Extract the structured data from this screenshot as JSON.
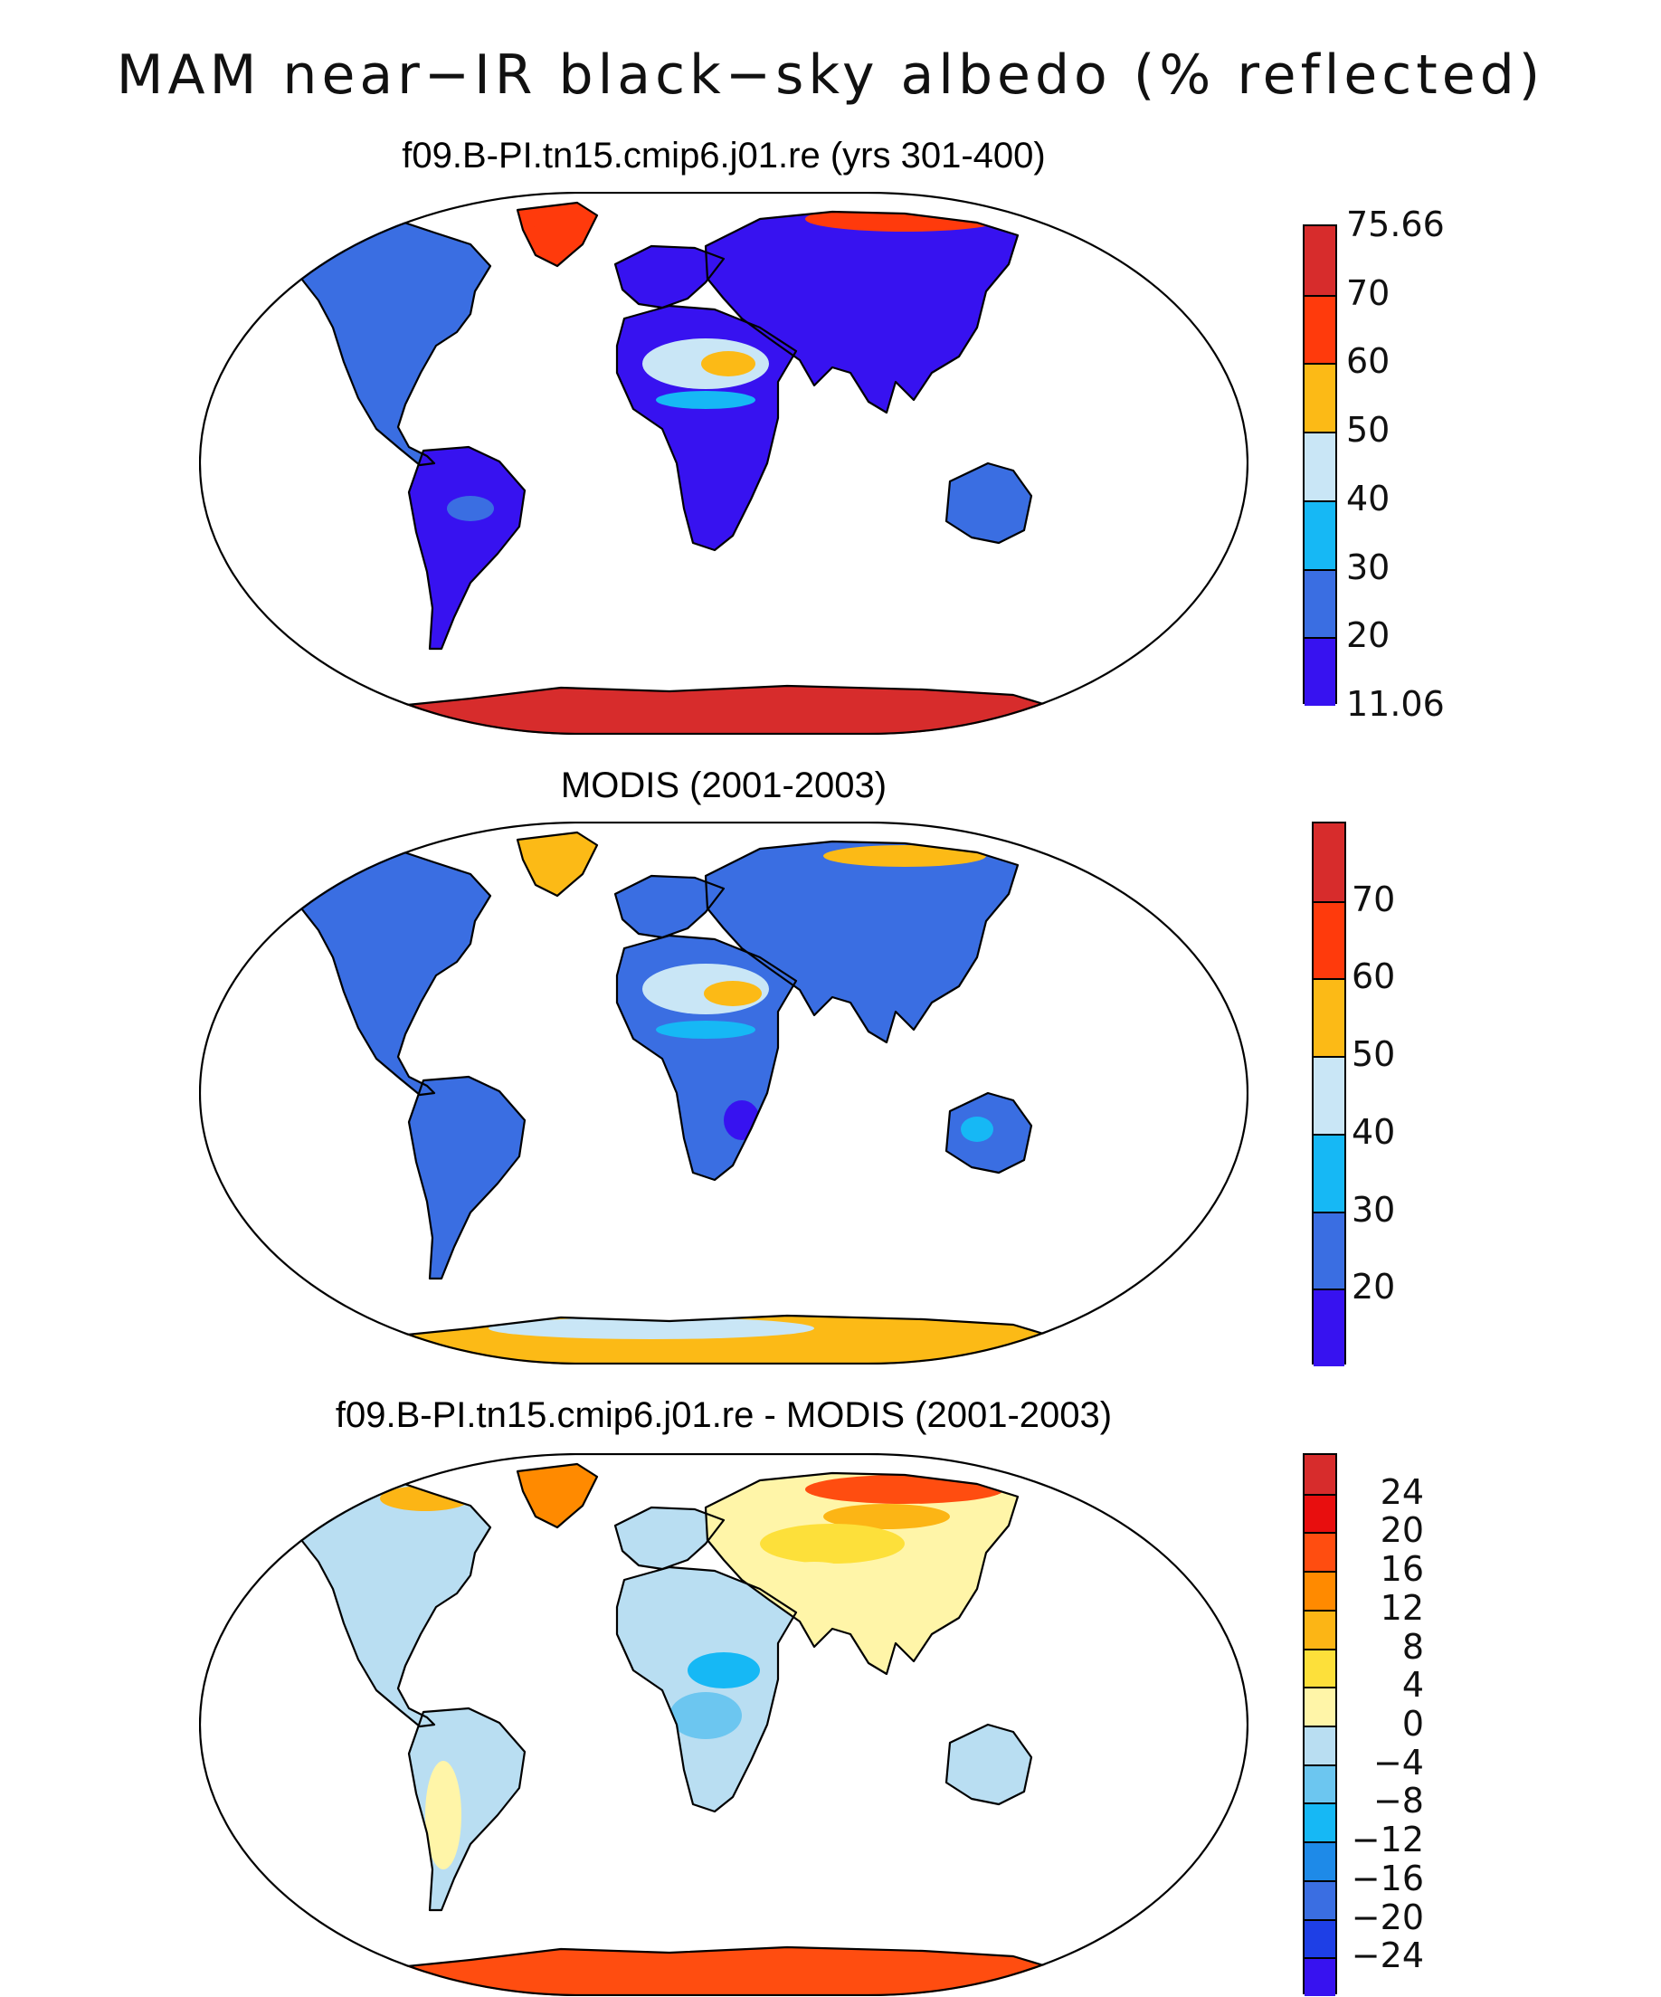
{
  "title": "MAM near−IR black−sky albedo (% reflected)",
  "panels": [
    {
      "id": "model",
      "title": "f09.B-PI.tn15.cmip6.j01.re (yrs 301-400)",
      "colorbar": {
        "colors": [
          "#3712f0",
          "#3a6ee2",
          "#16b8f5",
          "#c9e6f6",
          "#fcba16",
          "#ff3a0c",
          "#d72c2c"
        ],
        "labels": [
          "11.06",
          "20",
          "30",
          "40",
          "50",
          "60",
          "70",
          "75.66"
        ]
      }
    },
    {
      "id": "obs",
      "title": "MODIS (2001-2003)",
      "colorbar": {
        "colors": [
          "#3712f0",
          "#3a6ee2",
          "#16b8f5",
          "#c9e6f6",
          "#fcba16",
          "#ff3a0c",
          "#d72c2c"
        ],
        "labels": [
          "20",
          "30",
          "40",
          "50",
          "60",
          "70"
        ]
      }
    },
    {
      "id": "diff",
      "title": "f09.B-PI.tn15.cmip6.j01.re - MODIS (2001-2003)",
      "colorbar": {
        "colors": [
          "#3712f0",
          "#1e3fe6",
          "#3a6ee2",
          "#1e8ae8",
          "#16b8f5",
          "#6cc6f0",
          "#b9def2",
          "#fff5a8",
          "#fde03a",
          "#fcb515",
          "#ff8a00",
          "#ff4d10",
          "#e80e0e",
          "#d72c2c"
        ],
        "labels": [
          "−24",
          "−20",
          "−16",
          "−12",
          "−8",
          "−4",
          "0",
          "4",
          "8",
          "12",
          "16",
          "20",
          "24"
        ]
      }
    }
  ]
}
